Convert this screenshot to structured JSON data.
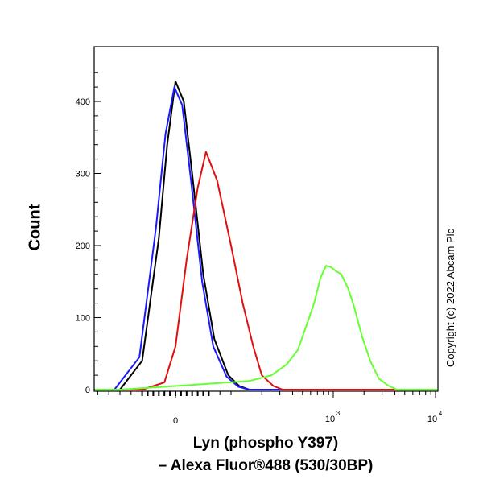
{
  "chart_data": {
    "type": "line",
    "xlabel_line1": "Lyn (phospho Y397)",
    "xlabel_line2": "– Alexa Fluor®488 (530/30BP)",
    "ylabel": "Count",
    "copyright": "Copyright (c) 2022 Abcam Plc",
    "ylim": [
      0,
      450
    ],
    "y_ticks": [
      0,
      100,
      200,
      300,
      400
    ],
    "x_scale": "biexponential",
    "x_tick_labels": [
      {
        "value": 0,
        "label": "0"
      },
      {
        "value": 1000,
        "base": "10",
        "exp": "3"
      },
      {
        "value": 10000,
        "base": "10",
        "exp": "4"
      }
    ],
    "grid": false,
    "series": [
      {
        "color": "#000000",
        "x": [
          -100,
          -60,
          -30,
          -15,
          0,
          15,
          30,
          50,
          70,
          95,
          120,
          150
        ],
        "y": [
          0,
          40,
          210,
          340,
          428,
          400,
          300,
          160,
          70,
          20,
          5,
          0
        ]
      },
      {
        "color": "#1a1aff",
        "x": [
          -110,
          -65,
          -35,
          -18,
          -2,
          12,
          28,
          48,
          68,
          92,
          118,
          150
        ],
        "y": [
          0,
          45,
          225,
          355,
          420,
          395,
          290,
          150,
          60,
          18,
          4,
          0
        ]
      },
      {
        "color": "#e01010",
        "x": [
          -60,
          -20,
          0,
          20,
          40,
          55,
          75,
          100,
          130,
          165,
          200,
          260,
          320
        ],
        "y": [
          0,
          10,
          60,
          180,
          280,
          330,
          290,
          200,
          120,
          60,
          20,
          5,
          0
        ]
      },
      {
        "color": "#66ff33",
        "x": [
          -100,
          0,
          150,
          250,
          350,
          450,
          550,
          650,
          750,
          850,
          950,
          1050,
          1200,
          1400,
          1600,
          1900,
          2300,
          2800,
          3500,
          4200
        ],
        "y": [
          0,
          5,
          12,
          20,
          35,
          55,
          90,
          120,
          155,
          172,
          170,
          165,
          160,
          140,
          115,
          75,
          40,
          15,
          5,
          0
        ]
      }
    ]
  }
}
